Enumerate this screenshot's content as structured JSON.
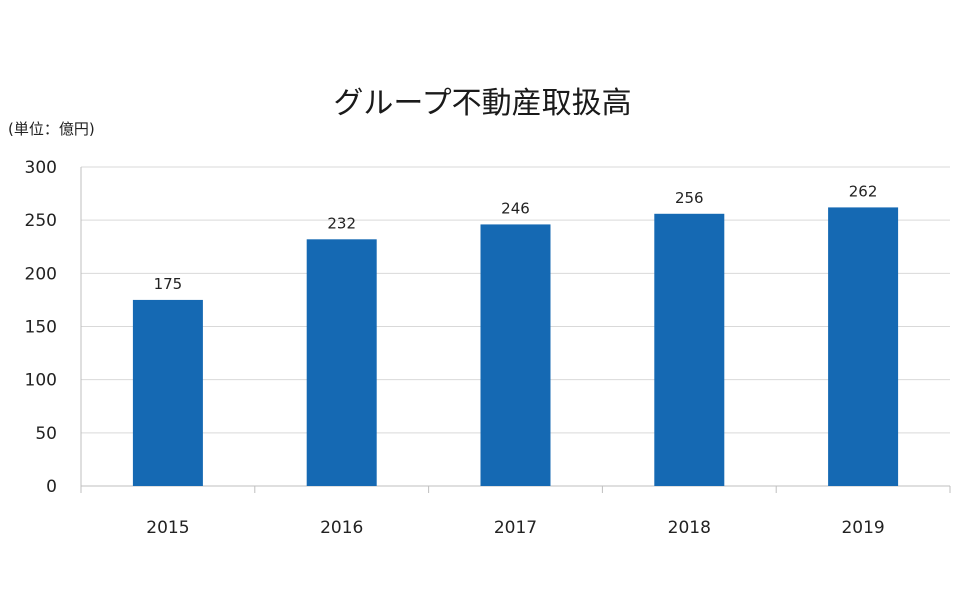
{
  "chart_data": {
    "type": "bar",
    "title": "グループ不動産取扱高",
    "unit_label": "(単位：億円)",
    "categories": [
      "2015",
      "2016",
      "2017",
      "2018",
      "2019"
    ],
    "values": [
      175,
      232,
      246,
      256,
      262
    ],
    "ylim": [
      0,
      300
    ],
    "yticks": [
      0,
      50,
      100,
      150,
      200,
      250,
      300
    ],
    "grid": true,
    "bar_color": "#1569b3",
    "grid_color": "#d9d9d9",
    "axis_color": "#bfbfbf"
  }
}
